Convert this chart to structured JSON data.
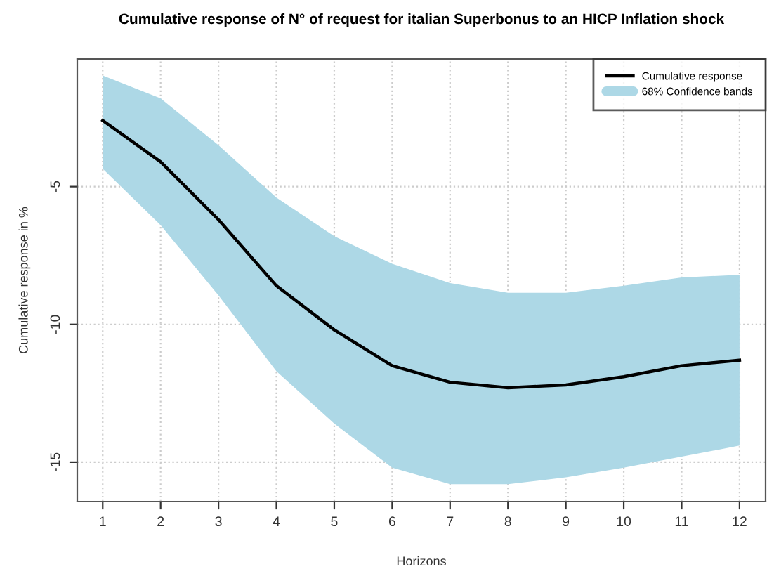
{
  "chart_data": {
    "type": "line",
    "title": "Cumulative response of N° of request for italian Superbonus to an HICP Inflation shock",
    "xlabel": "Horizons",
    "ylabel": "Cumulative response in %",
    "x": [
      1,
      2,
      3,
      4,
      5,
      6,
      7,
      8,
      9,
      10,
      11,
      12
    ],
    "series": [
      {
        "name": "Cumulative response",
        "color": "#000000",
        "values": [
          -2.6,
          -4.1,
          -6.2,
          -8.6,
          -10.2,
          -11.5,
          -12.1,
          -12.3,
          -12.2,
          -11.9,
          -11.5,
          -11.3
        ],
        "lower": [
          -4.35,
          -6.4,
          -8.95,
          -11.7,
          -13.6,
          -15.2,
          -15.8,
          -15.8,
          -15.55,
          -15.2,
          -14.8,
          -14.4
        ],
        "upper": [
          -0.97,
          -1.8,
          -3.5,
          -5.4,
          -6.8,
          -7.8,
          -8.5,
          -8.85,
          -8.85,
          -8.6,
          -8.3,
          -8.2
        ]
      }
    ],
    "annotations": [
      "68% Confidence bands"
    ],
    "xlim": [
      0.56,
      12.45
    ],
    "ylim": [
      -16.43,
      -0.37
    ],
    "xticks": [
      1,
      2,
      3,
      4,
      5,
      6,
      7,
      8,
      9,
      10,
      11,
      12
    ],
    "yticks": [
      -5,
      -10,
      -15
    ],
    "grid": true,
    "legend": "top right",
    "marker": "none",
    "line_style": "solid"
  }
}
